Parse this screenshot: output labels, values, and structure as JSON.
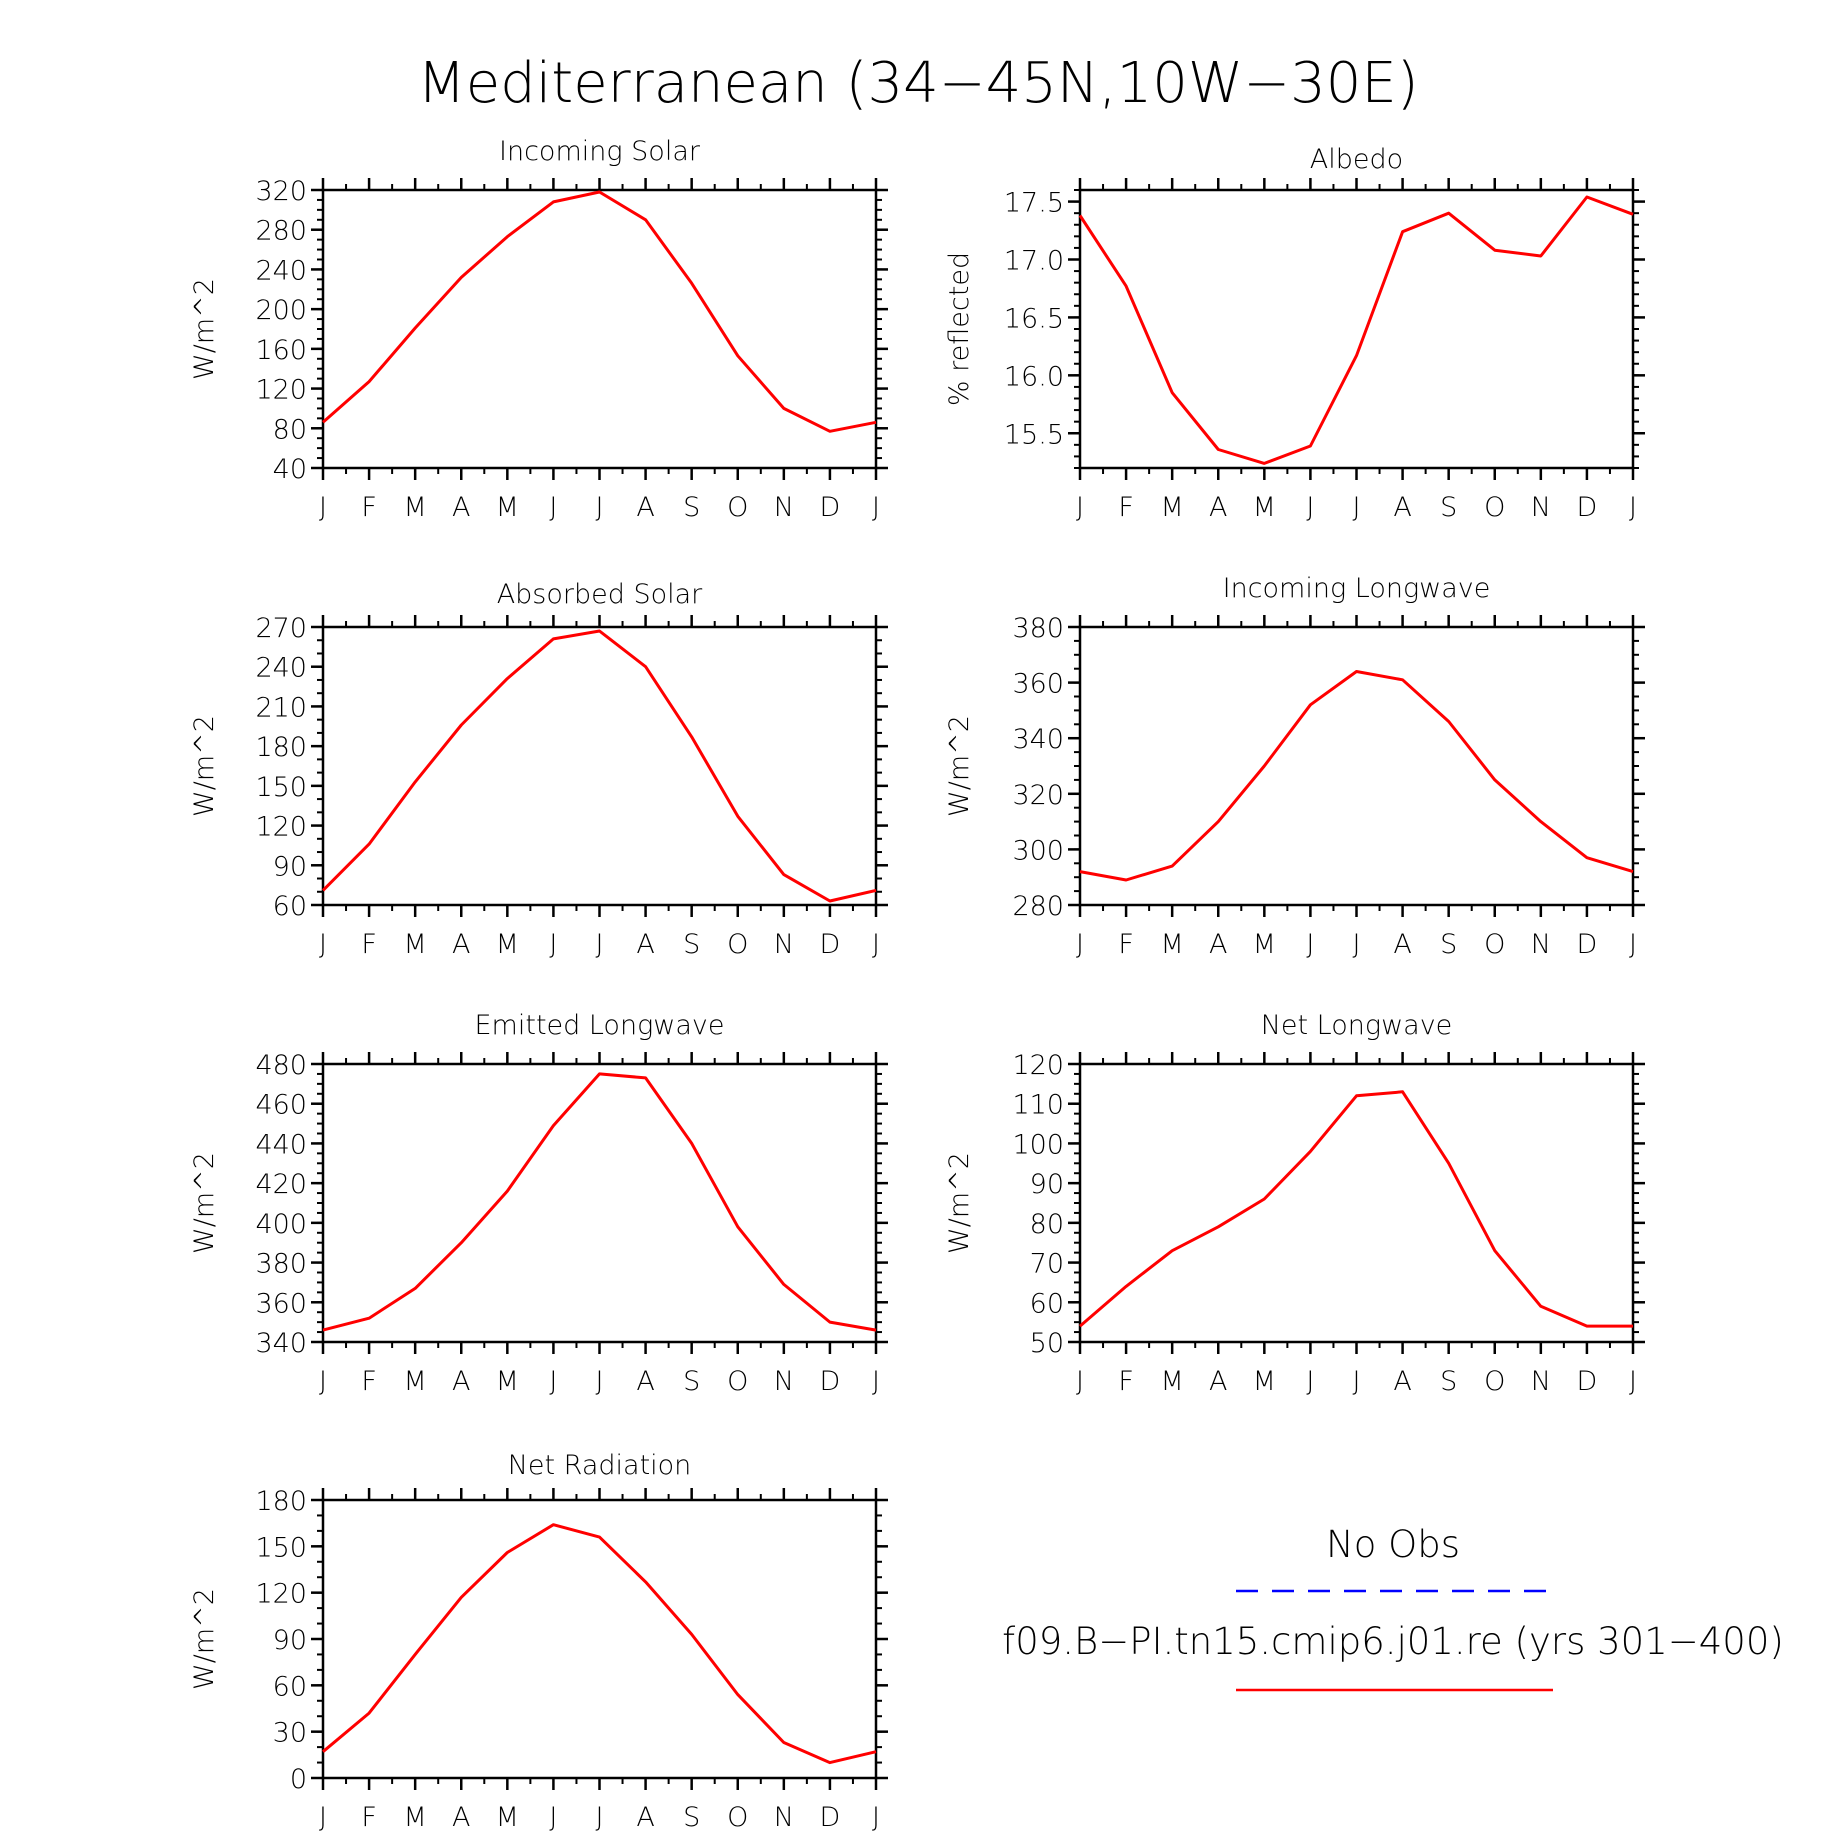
{
  "title": "Mediterranean (34−45N,10W−30E)",
  "month_labels": [
    "J",
    "F",
    "M",
    "A",
    "M",
    "J",
    "J",
    "A",
    "S",
    "O",
    "N",
    "D",
    "J"
  ],
  "colors": {
    "model": "#ff0000",
    "obs": "#0000ff",
    "axis": "#000000"
  },
  "legend": {
    "obs_label": "No Obs",
    "model_label": "f09.B−PI.tn15.cmip6.j01.re (yrs 301−400)"
  },
  "chart_data": [
    {
      "type": "line",
      "title": "Incoming Solar",
      "ylabel": "W/m^2",
      "ylim": [
        40,
        320
      ],
      "yticks": [
        40,
        80,
        120,
        160,
        200,
        240,
        280,
        320
      ],
      "ytick_labels": [
        "40",
        "80",
        "120",
        "160",
        "200",
        "240",
        "280",
        "320"
      ],
      "yminor": 10,
      "x": [
        "J",
        "F",
        "M",
        "A",
        "M",
        "J",
        "J",
        "A",
        "S",
        "O",
        "N",
        "D",
        "J"
      ],
      "series": [
        {
          "values": [
            86,
            127,
            181,
            232,
            273,
            308,
            318,
            290,
            226,
            153,
            100,
            77,
            86
          ]
        }
      ]
    },
    {
      "type": "line",
      "title": "Albedo",
      "ylabel": "% reflected",
      "ylim": [
        15.2,
        17.6
      ],
      "yticks": [
        15.5,
        16.0,
        16.5,
        17.0,
        17.5
      ],
      "ytick_labels": [
        "15.5",
        "16.0",
        "16.5",
        "17.0",
        "17.5"
      ],
      "yminor": 0.1,
      "x": [
        "J",
        "F",
        "M",
        "A",
        "M",
        "J",
        "J",
        "A",
        "S",
        "O",
        "N",
        "D",
        "J"
      ],
      "series": [
        {
          "values": [
            17.38,
            16.77,
            15.85,
            15.36,
            15.24,
            15.39,
            16.17,
            17.24,
            17.4,
            17.08,
            17.03,
            17.54,
            17.39
          ]
        }
      ]
    },
    {
      "type": "line",
      "title": "Absorbed Solar",
      "ylabel": "W/m^2",
      "ylim": [
        60,
        270
      ],
      "yticks": [
        60,
        90,
        120,
        150,
        180,
        210,
        240,
        270
      ],
      "ytick_labels": [
        "60",
        "90",
        "120",
        "150",
        "180",
        "210",
        "240",
        "270"
      ],
      "yminor": 10,
      "x": [
        "J",
        "F",
        "M",
        "A",
        "M",
        "J",
        "J",
        "A",
        "S",
        "O",
        "N",
        "D",
        "J"
      ],
      "series": [
        {
          "values": [
            71,
            106,
            153,
            196,
            231,
            261,
            267,
            240,
            187,
            127,
            83,
            63,
            71
          ]
        }
      ]
    },
    {
      "type": "line",
      "title": "Incoming Longwave",
      "ylabel": "W/m^2",
      "ylim": [
        280,
        380
      ],
      "yticks": [
        280,
        300,
        320,
        340,
        360,
        380
      ],
      "ytick_labels": [
        "280",
        "300",
        "320",
        "340",
        "360",
        "380"
      ],
      "yminor": 5,
      "x": [
        "J",
        "F",
        "M",
        "A",
        "M",
        "J",
        "J",
        "A",
        "S",
        "O",
        "N",
        "D",
        "J"
      ],
      "series": [
        {
          "values": [
            292,
            289,
            294,
            310,
            330,
            352,
            364,
            361,
            346,
            325,
            310,
            297,
            292
          ]
        }
      ]
    },
    {
      "type": "line",
      "title": "Emitted Longwave",
      "ylabel": "W/m^2",
      "ylim": [
        340,
        480
      ],
      "yticks": [
        340,
        360,
        380,
        400,
        420,
        440,
        460,
        480
      ],
      "ytick_labels": [
        "340",
        "360",
        "380",
        "400",
        "420",
        "440",
        "460",
        "480"
      ],
      "yminor": 5,
      "x": [
        "J",
        "F",
        "M",
        "A",
        "M",
        "J",
        "J",
        "A",
        "S",
        "O",
        "N",
        "D",
        "J"
      ],
      "series": [
        {
          "values": [
            346,
            352,
            367,
            390,
            416,
            449,
            475,
            473,
            440,
            398,
            369,
            350,
            346
          ]
        }
      ]
    },
    {
      "type": "line",
      "title": "Net Longwave",
      "ylabel": "W/m^2",
      "ylim": [
        50,
        120
      ],
      "yticks": [
        50,
        60,
        70,
        80,
        90,
        100,
        110,
        120
      ],
      "ytick_labels": [
        "50",
        "60",
        "70",
        "80",
        "90",
        "100",
        "110",
        "120"
      ],
      "yminor": 2.5,
      "x": [
        "J",
        "F",
        "M",
        "A",
        "M",
        "J",
        "J",
        "A",
        "S",
        "O",
        "N",
        "D",
        "J"
      ],
      "series": [
        {
          "values": [
            54,
            64,
            73,
            79,
            86,
            98,
            112,
            113,
            95,
            73,
            59,
            54,
            54
          ]
        }
      ]
    },
    {
      "type": "line",
      "title": "Net Radiation",
      "ylabel": "W/m^2",
      "ylim": [
        0,
        180
      ],
      "yticks": [
        0,
        30,
        60,
        90,
        120,
        150,
        180
      ],
      "ytick_labels": [
        "0",
        "30",
        "60",
        "90",
        "120",
        "150",
        "180"
      ],
      "yminor": 10,
      "x": [
        "J",
        "F",
        "M",
        "A",
        "M",
        "J",
        "J",
        "A",
        "S",
        "O",
        "N",
        "D",
        "J"
      ],
      "series": [
        {
          "values": [
            17,
            42,
            80,
            117,
            146,
            164,
            156,
            127,
            93,
            54,
            23,
            10,
            17
          ]
        }
      ]
    }
  ]
}
